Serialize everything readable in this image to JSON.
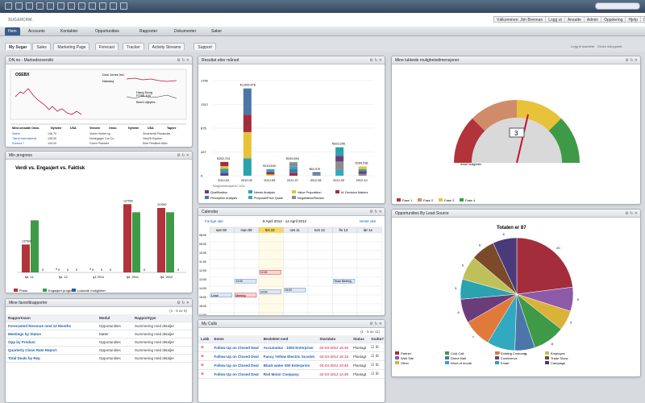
{
  "app": {
    "name": "SUGARCRM."
  },
  "user_links": [
    "Välkommen: Jim Brennan",
    "Logg ut",
    "Ansatte",
    "Admin",
    "Oppdering",
    "Hjelp",
    "Om"
  ],
  "modules": [
    "Hem",
    "Accounts",
    "Kontakter",
    "Opportunities",
    "Rapporter",
    "Dokumenter",
    "Saker"
  ],
  "dash_tabs": [
    "My Sugar",
    "Sales",
    "Marketing Page",
    "Forecast",
    "Tracker",
    "Activity Streams",
    "Support"
  ],
  "dash_options": [
    "Legg til dashlets",
    "Endre sidoppsett"
  ],
  "dashlets": {
    "market": {
      "title": "DN.no - Markedsoversikt",
      "index_name": "OSEBX",
      "quotes": [
        "Dow Jones Ind.",
        "Nasdaq",
        "Hang Seng",
        "FTSE 100",
        "Brent oljepris"
      ],
      "table_headers": [
        "Mest omsatte",
        "Omsr.",
        "Nyheter",
        "USA",
        "Vinnere",
        "Omsr.",
        "Nyheter",
        "USA",
        "Tapere"
      ],
      "table_rows": [
        [
          "Statoil",
          "146.70",
          "Visker Vekter sp.",
          "Smartcraft Plaoserias"
        ],
        [
          "Tilsna International",
          "138.50",
          "Nortegager Car Co.",
          "Vela26 Equitim"
        ],
        [
          "Subsea 7",
          "140.00",
          "Green Plantare",
          "Elter Resilient Aktiv"
        ]
      ]
    },
    "progress": {
      "title": "Min progress",
      "chart_title": "Verdi vs. Engasjert vs. Faktisk",
      "legend": [
        "Prosk",
        "Engasjert progress",
        "Lukkede muligheter"
      ]
    },
    "reports": {
      "title": "Mine favorittrapporter",
      "paging": "(1 - 5 av 5)",
      "headers": [
        "Rapportnavn",
        "Modul",
        "Rapporttype"
      ],
      "rows": [
        [
          "Forecasted Revenue next 12 Months",
          "Opportunities",
          "Summering med detaljer"
        ],
        [
          "Meetings by Status",
          "Møter",
          "Summering med detaljer"
        ],
        [
          "Opp by Product",
          "Opportunities",
          "Summering med detaljer"
        ],
        [
          "Quarterly Close Rate Report",
          "Opportunities",
          "Summering med detaljer"
        ],
        [
          "Total Deals by Rep",
          "Opportunities",
          "Summering med detaljer"
        ]
      ]
    },
    "results": {
      "title": "Resultat etter måned",
      "footnote": "Mulighetsbeløpene i NOK",
      "legend": [
        "Qualification",
        "Needs Analysis",
        "Value Proposition",
        "Id. Decision Makers",
        "Perception Analysis",
        "Proposal/Price Quote",
        "Negotiation/Review"
      ]
    },
    "calendar": {
      "title": "Calendar",
      "prev": "Forrige uke",
      "next": "Neste uke",
      "range": "8 April 2012 - 14 April 2012",
      "days": [
        "søn 08",
        "man 09",
        "tirs 10",
        "ons 11",
        "tors 12",
        "fre 13",
        "lør 14"
      ],
      "hours": [
        "08:00",
        "09:00",
        "10:00",
        "11:00",
        "12:00",
        "13:00",
        "14:00",
        "15:00",
        "16:00",
        "17:00"
      ],
      "events": [
        "12:00",
        "Team Meeting",
        "13:00",
        "14:00",
        "15:00",
        "Lunch",
        "Meeting"
      ]
    },
    "calls": {
      "title": "My Calls",
      "paging": "(1 - 5 av 11)",
      "headers": [
        "Lukk",
        "Emne",
        "Beslektet med",
        "Startdato",
        "Status",
        "Godta?"
      ],
      "rows": [
        [
          "Follow Up on Closed Deal",
          "Accumulus - 1000 Enterprise",
          "04-04-2012 15:45",
          "Planlagt"
        ],
        [
          "Follow Up on Closed Deal",
          "Fancy Yellow Electric Scooter",
          "04-04-2012 16:15",
          "Planlagt"
        ],
        [
          "Follow Up on Closed Deal",
          "Black water 500 Enterprise",
          "04-04-2012 10:45",
          "Planlagt"
        ],
        [
          "Follow Up on Closed Deal",
          "Red Motor Company",
          "04-04-2012 14:30",
          "Planlagt"
        ]
      ]
    },
    "gauge": {
      "title": "Mine lukkede mulighetsdimensjoner",
      "value": "3",
      "sublabel": "Antall muligheter",
      "legend": [
        "Fase 1",
        "Fase 2",
        "Fase 3",
        "Fase 4"
      ]
    },
    "leadsource": {
      "title": "Opportunities By Lead Source",
      "chart_title": "Totalen er 87",
      "legend": [
        "Partner",
        "Web Site",
        "Other",
        "Cold Call",
        "Direct Mail",
        "Word of mouth",
        "Existing Customer",
        "Conference",
        "Email",
        "Employee",
        "Trade Show",
        "Campaign"
      ]
    }
  },
  "colors": {
    "accent": "#3b5b8c",
    "brand": "#c8102e",
    "link": "#1a5fb4"
  },
  "chart_data": [
    {
      "type": "bar",
      "title": "Verdi vs. Engasjert vs. Faktisk",
      "categories": [
        "fjd. 11",
        "fjd. 12",
        "q1 2011",
        "fjd. 2011",
        "fjd. 2012"
      ],
      "series": [
        {
          "name": "Prosk",
          "values": [
            52000,
            0,
            0,
            127000,
            120000
          ]
        },
        {
          "name": "Engasjert progress",
          "values": [
            97000,
            0,
            0,
            112000,
            112000
          ]
        },
        {
          "name": "Lukkede muligheter",
          "values": [
            0,
            0,
            0,
            0,
            0
          ]
        }
      ],
      "ylim": [
        0,
        150000
      ],
      "value_labels": [
        "137500",
        "0",
        "0",
        "127000",
        "112000"
      ]
    },
    {
      "type": "bar",
      "title": "Resultat etter måned",
      "categories": [
        "2012-04",
        "2012-05",
        "2012-06",
        "2012-07",
        "2012-08",
        "2012-09",
        "2012-10"
      ],
      "values": [
        252724,
        1605476,
        119640,
        249594,
        62979,
        523296,
        169536
      ],
      "value_labels": [
        "€252,724",
        "€1,605,476",
        "€119,640",
        "€249,594",
        "€62,979",
        "€523,296",
        "€169,536"
      ],
      "ylim": [
        0,
        1750000
      ],
      "yticks": [
        "0",
        "437",
        "875",
        "1312",
        "1750"
      ]
    },
    {
      "type": "pie",
      "title": "Totalen er 87",
      "labels": [
        "Partner",
        "Web Site",
        "Other",
        "Cold Call",
        "Direct Mail",
        "Word of mouth",
        "Existing Customer",
        "Conference",
        "Email",
        "Employee",
        "Trade Show",
        "Campaign"
      ],
      "values": [
        20,
        6,
        5,
        8,
        5,
        7,
        7,
        6,
        5,
        6,
        6,
        6
      ]
    }
  ]
}
